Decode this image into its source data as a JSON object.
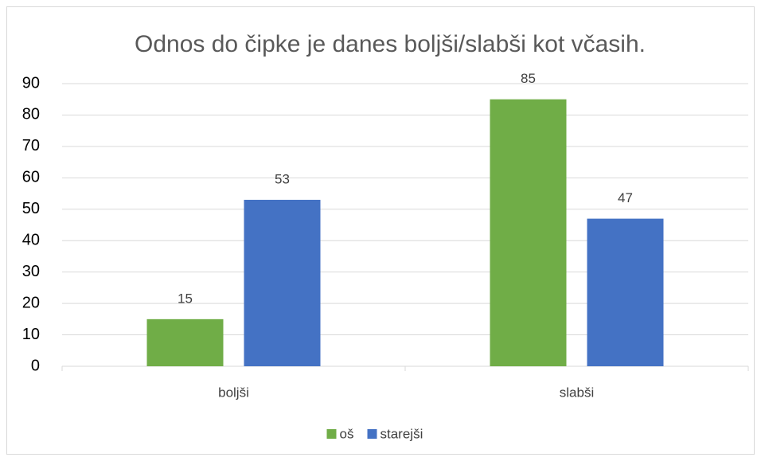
{
  "chart_data": {
    "type": "bar",
    "title": "Odnos do čipke je danes boljši/slabši kot včasih.",
    "categories": [
      "boljši",
      "slabši"
    ],
    "series": [
      {
        "name": "oš",
        "color": "#70ad47",
        "values": [
          15,
          85
        ]
      },
      {
        "name": "starejši",
        "color": "#4472c4",
        "values": [
          53,
          47
        ]
      }
    ],
    "ylim": [
      0,
      90
    ],
    "yticks": [
      0,
      10,
      20,
      30,
      40,
      50,
      60,
      70,
      80,
      90
    ],
    "grid": true,
    "legend": "bottom"
  }
}
